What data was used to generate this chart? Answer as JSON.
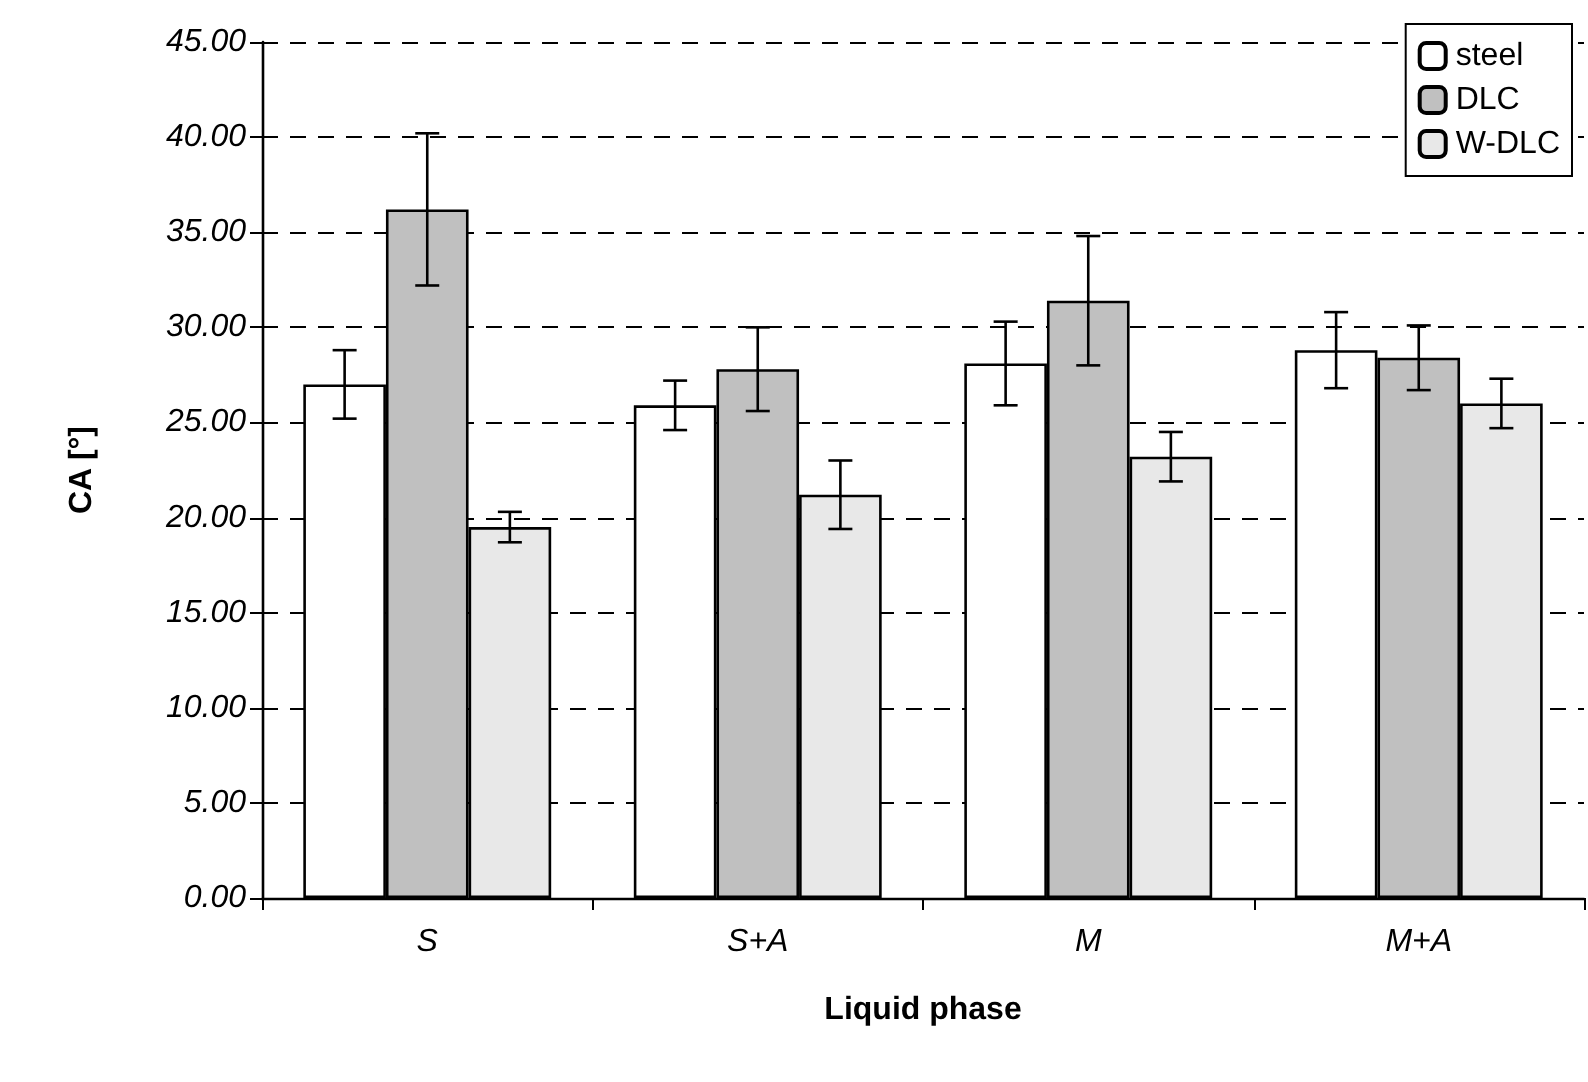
{
  "chart_data": {
    "type": "bar",
    "xlabel": "Liquid phase",
    "ylabel": "CA [°]",
    "categories": [
      "S",
      "S+A",
      "M",
      "M+A"
    ],
    "series": [
      {
        "name": "steel",
        "color": "#ffffff",
        "values": [
          27.0,
          25.9,
          28.1,
          28.8
        ],
        "errors": [
          1.8,
          1.3,
          2.2,
          2.0
        ]
      },
      {
        "name": "DLC",
        "color": "#c0c0c0",
        "values": [
          36.2,
          27.8,
          31.4,
          28.4
        ],
        "errors": [
          4.0,
          2.2,
          3.4,
          1.7
        ]
      },
      {
        "name": "W-DLC",
        "color": "#e8e8e8",
        "values": [
          19.5,
          21.2,
          23.2,
          26.0
        ],
        "errors": [
          0.8,
          1.8,
          1.3,
          1.3
        ]
      }
    ],
    "ylim": [
      0,
      45
    ],
    "yticks": [
      {
        "value": 0,
        "label": "0.00"
      },
      {
        "value": 5,
        "label": "5.00"
      },
      {
        "value": 10,
        "label": "10.00"
      },
      {
        "value": 15,
        "label": "15.00"
      },
      {
        "value": 20,
        "label": "20.00"
      },
      {
        "value": 25,
        "label": "25.00"
      },
      {
        "value": 30,
        "label": "30.00"
      },
      {
        "value": 35,
        "label": "35.00"
      },
      {
        "value": 40,
        "label": "40.00"
      },
      {
        "value": 45,
        "label": "45.00"
      }
    ],
    "grid": "y",
    "legend": "top right",
    "line_style": "solid"
  }
}
